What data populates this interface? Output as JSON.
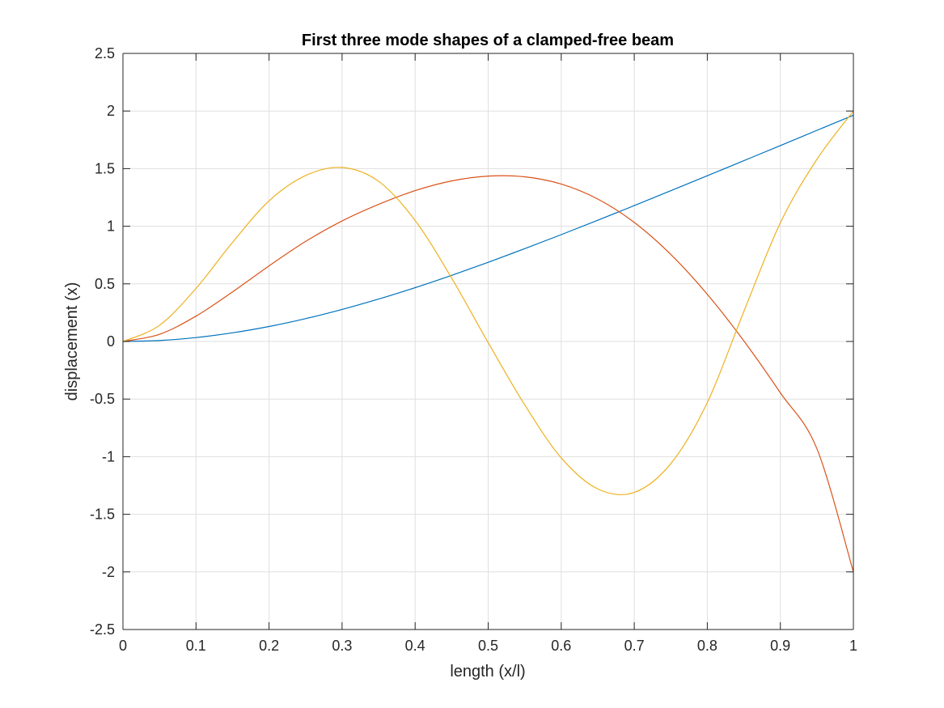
{
  "chart_data": {
    "type": "line",
    "title": "First three mode shapes of a clamped-free beam",
    "xlabel": "length (x/l)",
    "ylabel": "displacement (x)",
    "xlim": [
      0,
      1
    ],
    "ylim": [
      -2.5,
      2.5
    ],
    "grid": true,
    "box": true,
    "x_ticks": [
      0,
      0.1,
      0.2,
      0.3,
      0.4,
      0.5,
      0.6,
      0.7,
      0.8,
      0.9,
      1
    ],
    "x_tick_labels": [
      "0",
      "0.1",
      "0.2",
      "0.3",
      "0.4",
      "0.5",
      "0.6",
      "0.7",
      "0.8",
      "0.9",
      "1"
    ],
    "y_ticks": [
      -2.5,
      -2,
      -1.5,
      -1,
      -0.5,
      0,
      0.5,
      1,
      1.5,
      2,
      2.5
    ],
    "y_tick_labels": [
      "-2.5",
      "-2",
      "-1.5",
      "-1",
      "-0.5",
      "0",
      "0.5",
      "1",
      "1.5",
      "2",
      "2.5"
    ],
    "x": [
      0,
      0.05,
      0.1,
      0.15,
      0.2,
      0.25,
      0.3,
      0.35,
      0.4,
      0.45,
      0.5,
      0.55,
      0.6,
      0.65,
      0.7,
      0.75,
      0.8,
      0.85,
      0.9,
      0.95,
      1
    ],
    "series": [
      {
        "color": "#0072BD",
        "values": [
          0,
          0.008,
          0.034,
          0.075,
          0.13,
          0.198,
          0.278,
          0.368,
          0.467,
          0.574,
          0.687,
          0.805,
          0.927,
          1.052,
          1.179,
          1.308,
          1.438,
          1.569,
          1.7,
          1.832,
          1.963
        ]
      },
      {
        "color": "#D95319",
        "values": [
          0,
          0.062,
          0.22,
          0.43,
          0.656,
          0.868,
          1.046,
          1.19,
          1.309,
          1.393,
          1.435,
          1.429,
          1.366,
          1.236,
          1.033,
          0.755,
          0.409,
          0.005,
          -0.446,
          -0.93,
          -2.0
        ]
      },
      {
        "color": "#EDB120",
        "values": [
          0,
          0.14,
          0.46,
          0.86,
          1.22,
          1.44,
          1.51,
          1.39,
          1.05,
          0.55,
          -0.01,
          -0.55,
          -1.01,
          -1.28,
          -1.31,
          -1.06,
          -0.53,
          0.26,
          1.03,
          1.58,
          2.0
        ]
      }
    ],
    "colors": {
      "grid": "#dfdfdf",
      "axis": "#262626"
    }
  }
}
